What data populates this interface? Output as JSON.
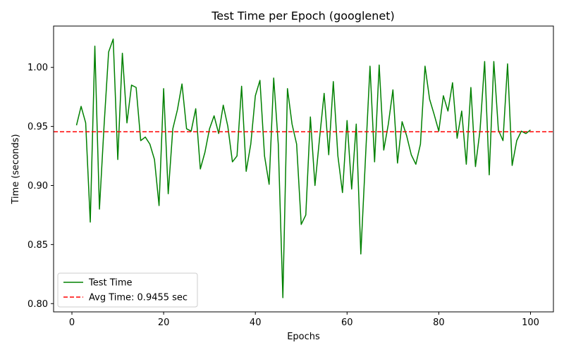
{
  "chart_data": {
    "type": "line",
    "title": "Test Time per Epoch (googlenet)",
    "xlabel": "Epochs",
    "ylabel": "Time (seconds)",
    "xlim": [
      -4,
      105
    ],
    "ylim": [
      0.793,
      1.035
    ],
    "xticks": [
      0,
      20,
      40,
      60,
      80,
      100
    ],
    "yticks": [
      0.8,
      0.85,
      0.9,
      0.95,
      1.0
    ],
    "ytick_labels": [
      "0.80",
      "0.85",
      "0.90",
      "0.95",
      "1.00"
    ],
    "grid": false,
    "legend_position": "lower-left",
    "series": [
      {
        "name": "Test Time",
        "color": "#008000",
        "style": "solid",
        "x": [
          1,
          2,
          3,
          4,
          5,
          6,
          7,
          8,
          9,
          10,
          11,
          12,
          13,
          14,
          15,
          16,
          17,
          18,
          19,
          20,
          21,
          22,
          23,
          24,
          25,
          26,
          27,
          28,
          29,
          30,
          31,
          32,
          33,
          34,
          35,
          36,
          37,
          38,
          39,
          40,
          41,
          42,
          43,
          44,
          45,
          46,
          47,
          48,
          49,
          50,
          51,
          52,
          53,
          54,
          55,
          56,
          57,
          58,
          59,
          60,
          61,
          62,
          63,
          64,
          65,
          66,
          67,
          68,
          69,
          70,
          71,
          72,
          73,
          74,
          75,
          76,
          77,
          78,
          79,
          80,
          81,
          82,
          83,
          84,
          85,
          86,
          87,
          88,
          89,
          90,
          91,
          92,
          93,
          94,
          95,
          96,
          97,
          98,
          99,
          100
        ],
        "y": [
          0.951,
          0.967,
          0.953,
          0.869,
          1.018,
          0.88,
          0.95,
          1.013,
          1.024,
          0.922,
          1.012,
          0.953,
          0.985,
          0.983,
          0.938,
          0.941,
          0.935,
          0.922,
          0.883,
          0.982,
          0.893,
          0.948,
          0.964,
          0.986,
          0.948,
          0.946,
          0.965,
          0.914,
          0.928,
          0.948,
          0.959,
          0.944,
          0.968,
          0.95,
          0.92,
          0.925,
          0.984,
          0.912,
          0.935,
          0.976,
          0.989,
          0.925,
          0.901,
          0.991,
          0.935,
          0.805,
          0.982,
          0.952,
          0.935,
          0.867,
          0.875,
          0.958,
          0.9,
          0.94,
          0.978,
          0.926,
          0.988,
          0.925,
          0.894,
          0.955,
          0.897,
          0.952,
          0.842,
          0.922,
          1.001,
          0.92,
          1.002,
          0.93,
          0.952,
          0.981,
          0.919,
          0.954,
          0.942,
          0.926,
          0.918,
          0.935,
          1.001,
          0.973,
          0.96,
          0.946,
          0.976,
          0.963,
          0.987,
          0.94,
          0.963,
          0.918,
          0.983,
          0.916,
          0.947,
          1.005,
          0.909,
          1.005,
          0.947,
          0.938,
          1.003,
          0.917,
          0.938,
          0.946,
          0.944,
          0.947
        ]
      },
      {
        "name": "Avg Time: 0.9455 sec",
        "color": "#ff0000",
        "style": "dashed",
        "value": 0.9455
      }
    ]
  }
}
